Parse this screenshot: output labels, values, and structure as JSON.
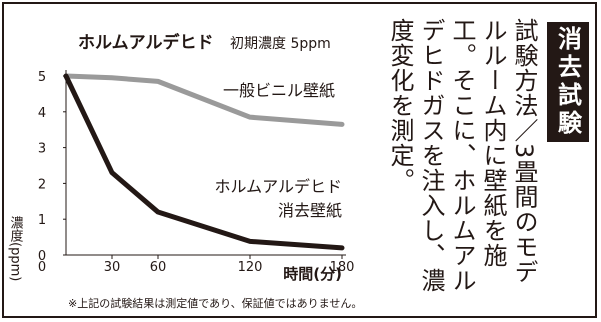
{
  "chart_data": {
    "type": "line",
    "title": "ホルムアルデヒド",
    "subtitle": "初期濃度 5ppm",
    "xlabel": "時間(分)",
    "ylabel": "濃度(ppm)",
    "x_ticks": [
      0,
      30,
      60,
      120,
      180
    ],
    "y_ticks": [
      0,
      1,
      2,
      3,
      4,
      5
    ],
    "xlim": [
      0,
      180
    ],
    "ylim": [
      0,
      5
    ],
    "grid": false,
    "legend": "inline",
    "series": [
      {
        "name": "一般ビニル壁紙",
        "color": "#9a9a9a",
        "x": [
          0,
          30,
          60,
          120,
          180
        ],
        "y": [
          5.0,
          4.95,
          4.85,
          3.85,
          3.65
        ]
      },
      {
        "name": "ホルムアルデヒド消去壁紙",
        "label_lines": [
          "ホルムアルデヒド",
          "消去壁紙"
        ],
        "color": "#231815",
        "x": [
          0,
          30,
          60,
          120,
          180
        ],
        "y": [
          5.0,
          2.3,
          1.2,
          0.38,
          0.2
        ]
      }
    ],
    "footnote": "※上記の試験結果は測定値であり、保証値ではありません。"
  },
  "side": {
    "note": "試験方法／3畳間のモデルルーム内に壁紙を施工。そこに、ホルムアルデヒドガスを注入し、濃度変化を測定。",
    "badge": "消去試験"
  }
}
